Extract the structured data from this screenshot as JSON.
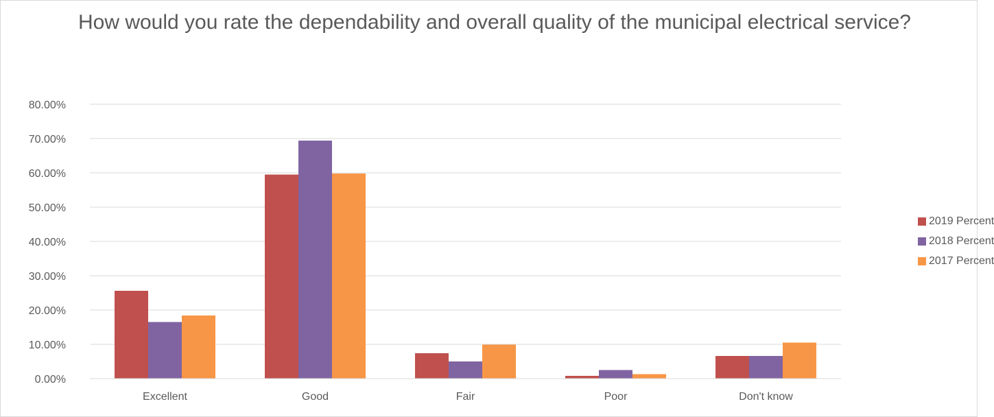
{
  "chart_data": {
    "type": "bar",
    "title": "How would you rate the dependability and overall quality of the municipal electrical service?",
    "categories": [
      "Excellent",
      "Good",
      "Fair",
      "Poor",
      "Don't know"
    ],
    "series": [
      {
        "name": "2019 Percent",
        "color": "#c0504d",
        "values": [
          25.6,
          59.5,
          7.4,
          0.8,
          6.6
        ]
      },
      {
        "name": "2018 Percent",
        "color": "#8064a2",
        "values": [
          16.5,
          69.4,
          5.0,
          2.5,
          6.6
        ]
      },
      {
        "name": "2017 Percent",
        "color": "#f79646",
        "values": [
          18.4,
          59.8,
          9.9,
          1.3,
          10.5
        ]
      }
    ],
    "y_ticks": [
      "0.00%",
      "10.00%",
      "20.00%",
      "30.00%",
      "40.00%",
      "50.00%",
      "60.00%",
      "70.00%",
      "80.00%"
    ],
    "ylim": [
      0,
      80
    ],
    "xlabel": "",
    "ylabel": "",
    "grid": true,
    "legend_position": "right",
    "gridline_color": "#d9d9d9"
  }
}
